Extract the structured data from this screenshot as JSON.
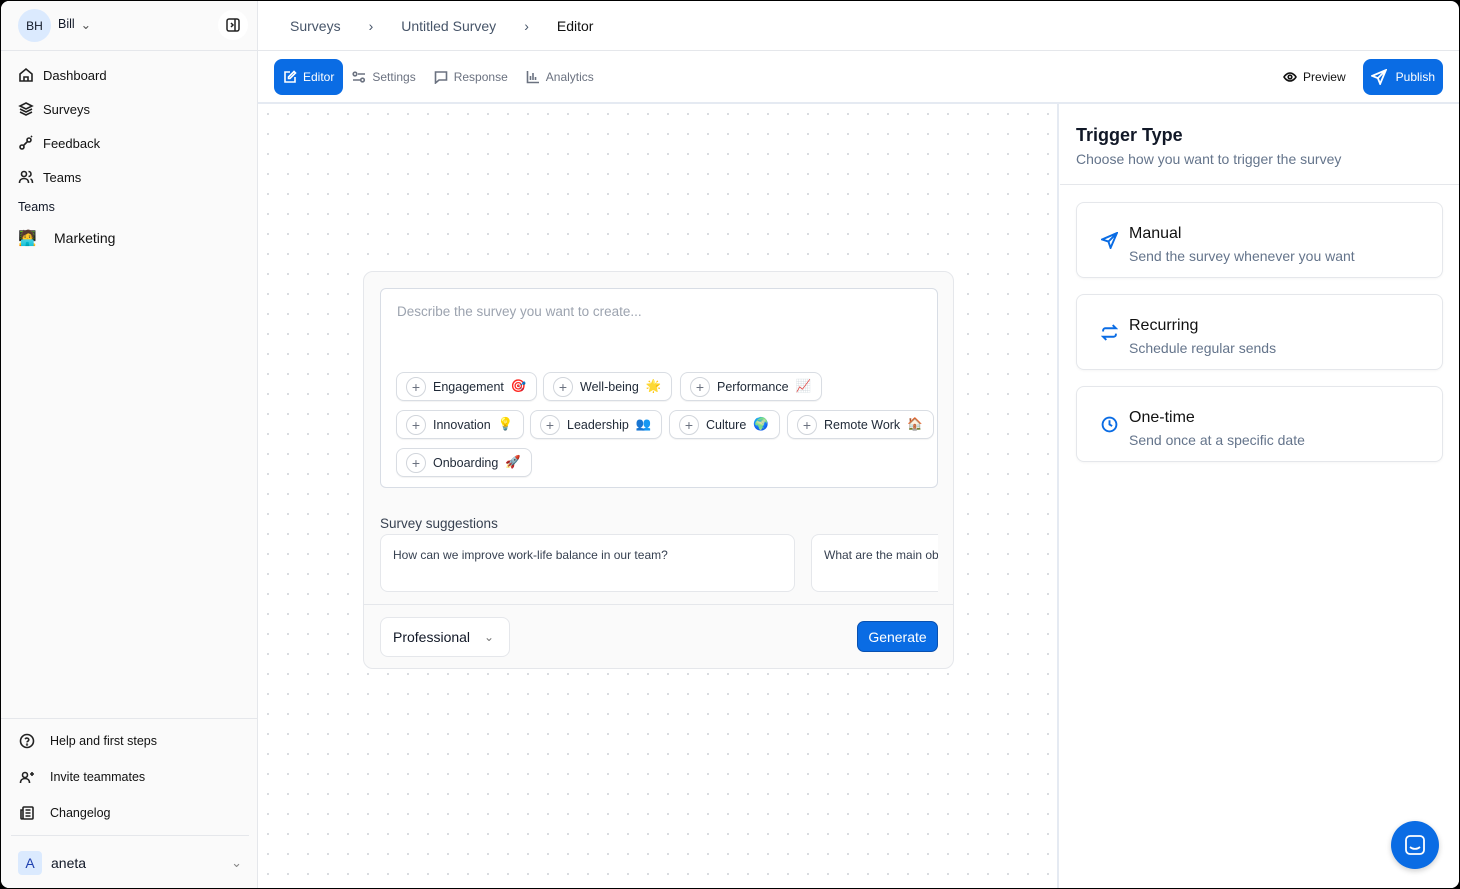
{
  "sidebar": {
    "user_initials": "BH",
    "user_name": "Bill",
    "items": [
      {
        "label": "Dashboard",
        "icon": "home-icon"
      },
      {
        "label": "Surveys",
        "icon": "layers-icon"
      },
      {
        "label": "Feedback",
        "icon": "feedback-icon"
      },
      {
        "label": "Teams",
        "icon": "users-icon"
      }
    ],
    "teams_heading": "Teams",
    "teams": [
      {
        "label": "Marketing",
        "emoji": "🧑‍💻"
      }
    ],
    "footer_items": [
      {
        "label": "Help and first steps",
        "icon": "help-circle-icon"
      },
      {
        "label": "Invite teammates",
        "icon": "user-plus-icon"
      },
      {
        "label": "Changelog",
        "icon": "newspaper-icon"
      }
    ],
    "account": {
      "initial": "A",
      "name": "aneta"
    }
  },
  "breadcrumb": [
    "Surveys",
    "Untitled Survey",
    "Editor"
  ],
  "tabs": [
    {
      "label": "Editor",
      "active": true
    },
    {
      "label": "Settings"
    },
    {
      "label": "Response"
    },
    {
      "label": "Analytics"
    }
  ],
  "actions": {
    "preview": "Preview",
    "publish": "Publish"
  },
  "composer": {
    "placeholder": "Describe the survey you want to create...",
    "chips": [
      {
        "label": "Engagement",
        "emoji": "🎯"
      },
      {
        "label": "Well-being",
        "emoji": "🌟"
      },
      {
        "label": "Performance",
        "emoji": "📈"
      },
      {
        "label": "Innovation",
        "emoji": "💡"
      },
      {
        "label": "Leadership",
        "emoji": "👥"
      },
      {
        "label": "Culture",
        "emoji": "🌍"
      },
      {
        "label": "Remote Work",
        "emoji": "🏠"
      },
      {
        "label": "Onboarding",
        "emoji": "🚀"
      }
    ],
    "suggestions_title": "Survey suggestions",
    "suggestions": [
      "How can we improve work-life balance in our team?",
      "What are the main ob"
    ],
    "tone": "Professional",
    "generate": "Generate"
  },
  "trigger": {
    "title": "Trigger Type",
    "subtitle": "Choose how you want to trigger the survey",
    "options": [
      {
        "title": "Manual",
        "desc": "Send the survey whenever you want"
      },
      {
        "title": "Recurring",
        "desc": "Schedule regular sends"
      },
      {
        "title": "One-time",
        "desc": "Send once at a specific date"
      }
    ]
  },
  "colors": {
    "accent": "#0a6ce4"
  }
}
